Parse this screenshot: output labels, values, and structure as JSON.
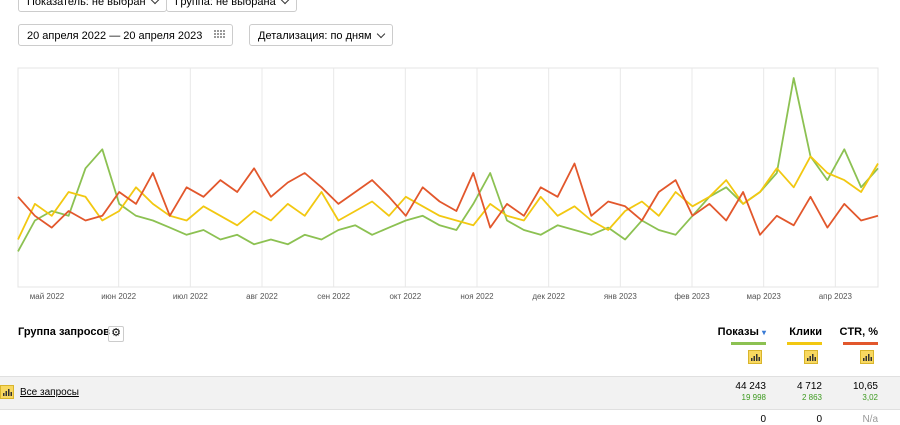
{
  "controls": {
    "metric": "Показатель: не выбран",
    "group": "Группа: не выбрана",
    "date_range": "20 апреля 2022 — 20 апреля 2023",
    "detail": "Детализация: по дням"
  },
  "chart_data": {
    "type": "line",
    "x_tick_labels": [
      "май 2022",
      "июн 2022",
      "июл 2022",
      "авг 2022",
      "сен 2022",
      "окт 2022",
      "ноя 2022",
      "дек 2022",
      "янв 2023",
      "фев 2023",
      "мар 2023",
      "апр 2023"
    ],
    "grid": true,
    "series": [
      {
        "name": "Показы",
        "color": "#8cc152",
        "values": [
          15,
          28,
          32,
          30,
          50,
          58,
          35,
          30,
          28,
          25,
          22,
          24,
          20,
          22,
          18,
          20,
          18,
          22,
          20,
          24,
          26,
          22,
          25,
          28,
          30,
          26,
          24,
          35,
          48,
          28,
          24,
          22,
          26,
          24,
          22,
          25,
          20,
          28,
          24,
          22,
          30,
          38,
          42,
          35,
          40,
          48,
          88,
          55,
          45,
          58,
          42,
          50
        ]
      },
      {
        "name": "Клики",
        "color": "#f2c811",
        "values": [
          20,
          35,
          30,
          40,
          38,
          28,
          32,
          42,
          35,
          30,
          28,
          34,
          30,
          26,
          32,
          28,
          35,
          30,
          40,
          28,
          32,
          36,
          30,
          38,
          34,
          30,
          28,
          26,
          35,
          30,
          28,
          38,
          30,
          34,
          28,
          24,
          32,
          36,
          30,
          40,
          34,
          38,
          45,
          35,
          40,
          50,
          42,
          55,
          48,
          45,
          40,
          52
        ]
      },
      {
        "name": "CTR, %",
        "color": "#e2572c",
        "values": [
          38,
          30,
          25,
          32,
          28,
          30,
          40,
          35,
          48,
          30,
          42,
          38,
          45,
          40,
          50,
          38,
          44,
          48,
          42,
          35,
          40,
          45,
          38,
          30,
          42,
          36,
          32,
          48,
          25,
          35,
          30,
          42,
          38,
          52,
          30,
          36,
          34,
          28,
          40,
          45,
          30,
          35,
          28,
          40,
          22,
          30,
          26,
          38,
          25,
          35,
          28,
          30
        ]
      }
    ]
  },
  "table": {
    "group_header": "Группа запросов",
    "rows": [
      {
        "name": "Все запросы",
        "cells": [
          [
            "44 243",
            "19 998"
          ],
          [
            "4 712",
            "2 863"
          ],
          [
            "10,65",
            "3,02"
          ]
        ]
      },
      {
        "cells": [
          [
            "0"
          ],
          [
            "0"
          ],
          [
            "N/a"
          ]
        ]
      }
    ]
  }
}
